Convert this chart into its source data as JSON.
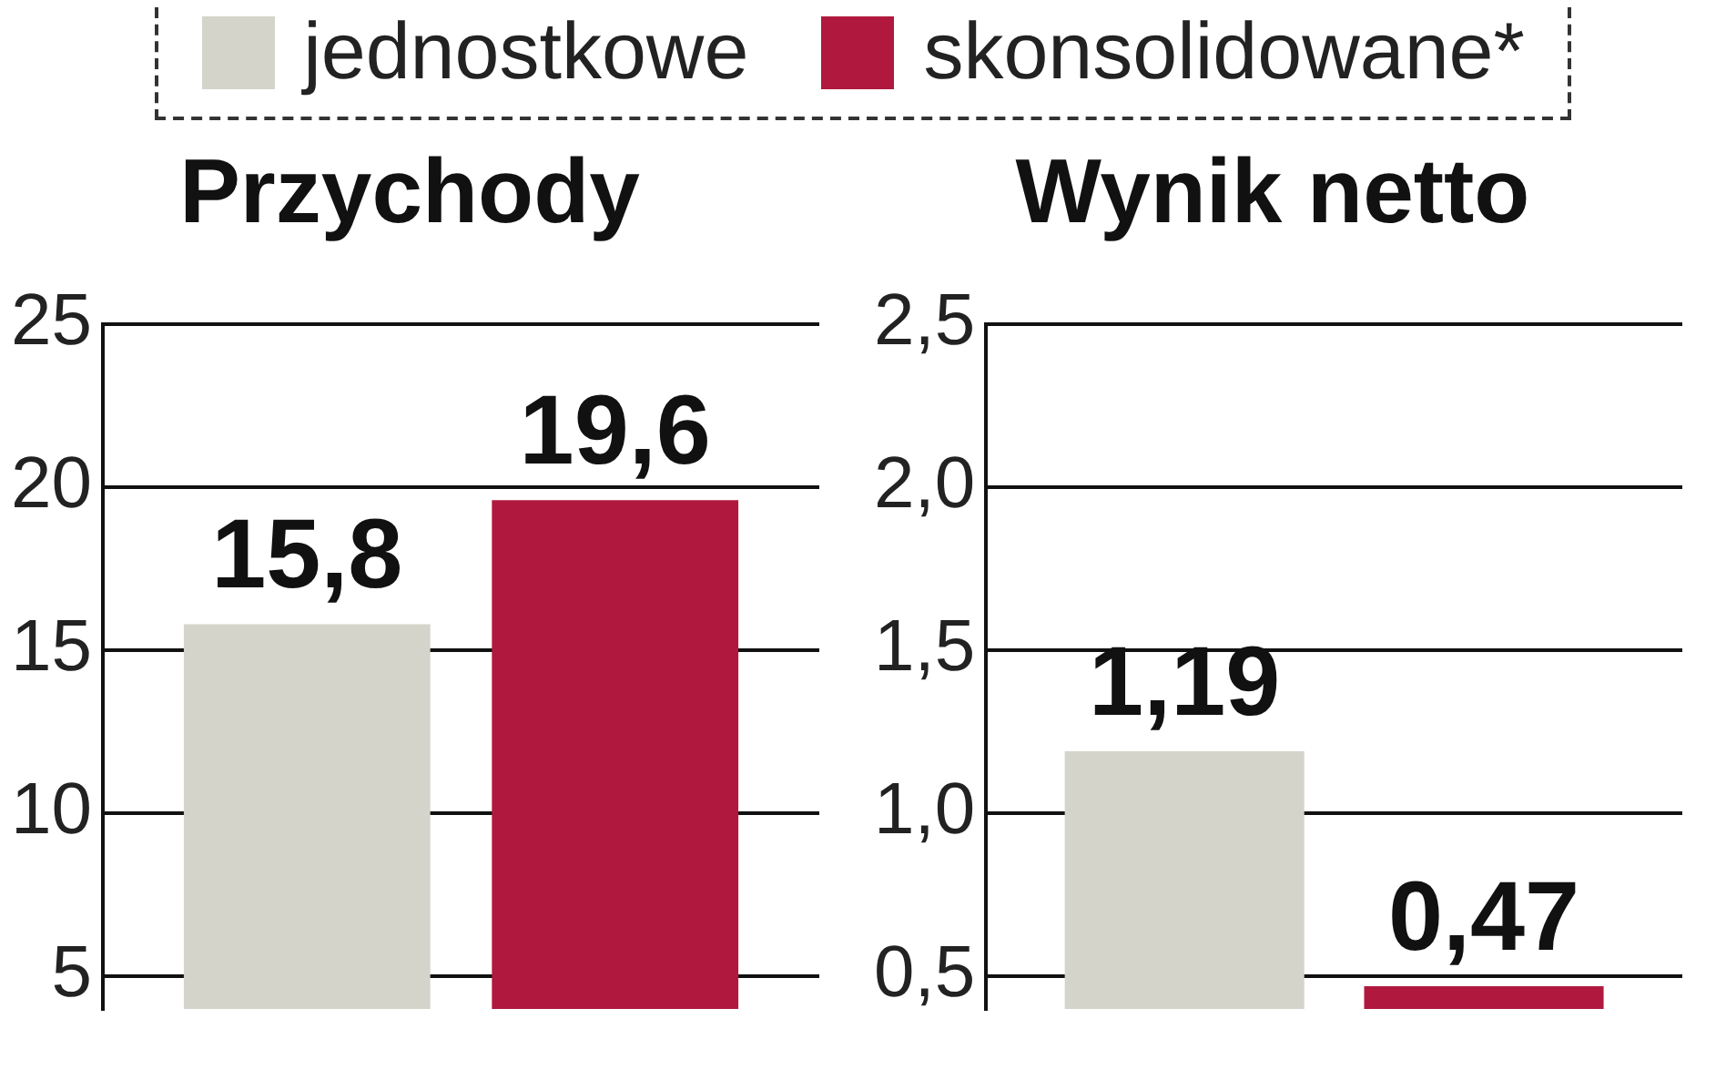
{
  "chart_data": [
    {
      "type": "bar",
      "title": "Przychody",
      "categories": [
        null
      ],
      "ylim": [
        4,
        25
      ],
      "yticks": [
        5,
        10,
        15,
        20,
        25
      ],
      "grid": "y",
      "legend": "top",
      "tick_labels": "y",
      "series": [
        {
          "name": "jednostkowe",
          "color": "#d4d4ca",
          "values": [
            15.8
          ],
          "value_labels": [
            "15,8"
          ]
        },
        {
          "name": "skonsolidowane*",
          "color": "#b0193d",
          "values": [
            19.6
          ],
          "value_labels": [
            "19,6"
          ]
        }
      ]
    },
    {
      "type": "bar",
      "title": "Wynik netto",
      "categories": [
        null
      ],
      "ylim": [
        0.4,
        2.5
      ],
      "yticks": [
        {
          "value": 0.5,
          "label": "0,5"
        },
        {
          "value": 1.0,
          "label": "1,0"
        },
        {
          "value": 1.5,
          "label": "1,5"
        },
        {
          "value": 2.0,
          "label": "2,0"
        },
        {
          "value": 2.5,
          "label": "2,5"
        }
      ],
      "grid": "y",
      "tick_labels": "y",
      "series": [
        {
          "color": "#d4d4ca",
          "values": [
            1.19
          ],
          "value_labels": [
            "1,19"
          ]
        },
        {
          "color": "#b0193d",
          "values": [
            0.47
          ],
          "value_labels": [
            "0,47"
          ]
        }
      ]
    }
  ]
}
